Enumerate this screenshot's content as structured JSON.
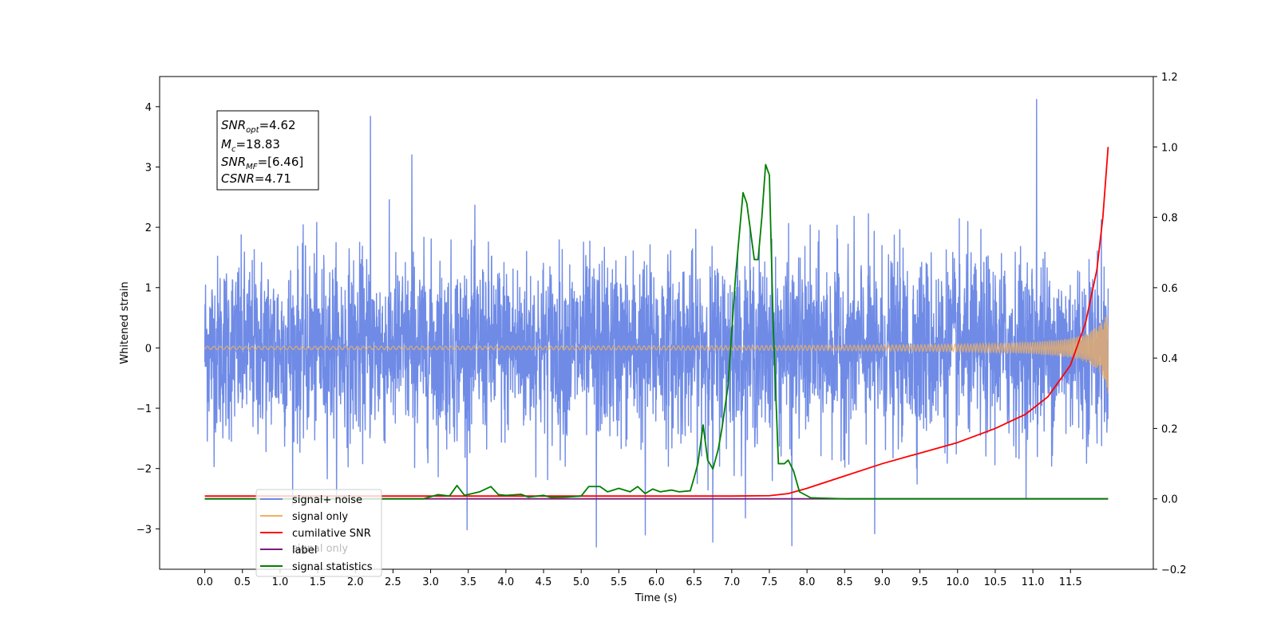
{
  "chart_data": {
    "type": "line",
    "xlabel": "Time (s)",
    "ylabel": "Whitened strain",
    "xlim": [
      -0.6,
      12.6
    ],
    "ylim": [
      -3.67,
      4.5
    ],
    "y2lim": [
      -0.2,
      1.2
    ],
    "x_ticks": [
      "0.0",
      "0.5",
      "1.0",
      "1.5",
      "2.0",
      "2.5",
      "3.0",
      "3.5",
      "4.0",
      "4.5",
      "5.0",
      "5.5",
      "6.0",
      "6.5",
      "7.0",
      "7.5",
      "8.0",
      "8.5",
      "9.0",
      "9.5",
      "10.0",
      "10.5",
      "11.0",
      "11.5"
    ],
    "y_ticks": [
      -3,
      -2,
      -1,
      0,
      1,
      2,
      3,
      4
    ],
    "y2_ticks": [
      "−0.2",
      "0.0",
      "0.2",
      "0.4",
      "0.6",
      "0.8",
      "1.0",
      "1.2"
    ],
    "annotation": {
      "lines": [
        {
          "base": "SNR",
          "sub": "opt",
          "rest": "=4.62"
        },
        {
          "base": "M",
          "sub": "c",
          "rest": "=18.83"
        },
        {
          "base": "SNR",
          "sub": "MF",
          "rest": "=[6.46]"
        },
        {
          "base": "CSNR",
          "sub": "",
          "rest": "=4.71"
        }
      ]
    },
    "series": [
      {
        "name": "signal+ noise",
        "color": "#6f8be6",
        "axis": "left",
        "kind": "noise",
        "t_range": [
          0.0,
          12.0
        ],
        "std": 0.75,
        "spikes": [
          [
            2.2,
            3.84
          ],
          [
            11.05,
            4.12
          ],
          [
            2.75,
            3.2
          ],
          [
            5.2,
            -3.3
          ],
          [
            7.8,
            -3.28
          ],
          [
            6.75,
            -3.22
          ],
          [
            8.9,
            -3.08
          ],
          [
            5.85,
            -3.1
          ]
        ]
      },
      {
        "name": "signal only",
        "color": "#f0b060",
        "axis": "left",
        "kind": "chirp",
        "t_range": [
          0.0,
          12.0
        ]
      },
      {
        "name": "cumilative SNR",
        "color": "#ff0000",
        "axis": "right",
        "x": [
          0.0,
          7.0,
          7.5,
          7.75,
          8.0,
          8.5,
          9.0,
          9.5,
          10.0,
          10.5,
          10.9,
          11.2,
          11.5,
          11.7,
          11.85,
          11.93,
          12.0
        ],
        "values": [
          0.008,
          0.008,
          0.009,
          0.015,
          0.03,
          0.065,
          0.1,
          0.13,
          0.16,
          0.2,
          0.24,
          0.29,
          0.38,
          0.5,
          0.65,
          0.8,
          1.0
        ]
      },
      {
        "name": "label",
        "color": "#7b1e7a",
        "axis": "right",
        "x": [
          0.0,
          12.0
        ],
        "values": [
          0.0,
          0.0
        ]
      },
      {
        "name": "signal statistics",
        "color": "#008000",
        "axis": "right",
        "x": [
          0.0,
          2.9,
          3.1,
          3.25,
          3.35,
          3.45,
          3.55,
          3.65,
          3.8,
          3.9,
          4.0,
          4.2,
          4.3,
          4.5,
          4.6,
          4.8,
          5.0,
          5.1,
          5.25,
          5.35,
          5.5,
          5.65,
          5.75,
          5.85,
          5.95,
          6.05,
          6.2,
          6.3,
          6.45,
          6.5,
          6.55,
          6.62,
          6.68,
          6.75,
          6.82,
          6.87,
          6.95,
          7.05,
          7.15,
          7.2,
          7.3,
          7.35,
          7.4,
          7.45,
          7.5,
          7.55,
          7.62,
          7.7,
          7.75,
          7.82,
          7.9,
          8.05,
          8.5,
          12.0
        ],
        "values": [
          0.0,
          0.0,
          0.012,
          0.008,
          0.038,
          0.01,
          0.015,
          0.02,
          0.035,
          0.012,
          0.01,
          0.013,
          0.005,
          0.01,
          0.004,
          0.005,
          0.008,
          0.035,
          0.035,
          0.02,
          0.03,
          0.02,
          0.035,
          0.015,
          0.028,
          0.02,
          0.025,
          0.02,
          0.023,
          0.06,
          0.1,
          0.21,
          0.11,
          0.085,
          0.14,
          0.2,
          0.32,
          0.63,
          0.87,
          0.84,
          0.68,
          0.68,
          0.8,
          0.95,
          0.92,
          0.5,
          0.1,
          0.1,
          0.11,
          0.08,
          0.02,
          0.003,
          0.0,
          0.0
        ]
      }
    ],
    "legend": {
      "placement": "lower-left",
      "entries": [
        "signal+ noise",
        "signal only",
        "cumilative SNR",
        "label",
        "signal statistics"
      ]
    },
    "legend_ghost_text": [
      "signal only"
    ]
  }
}
